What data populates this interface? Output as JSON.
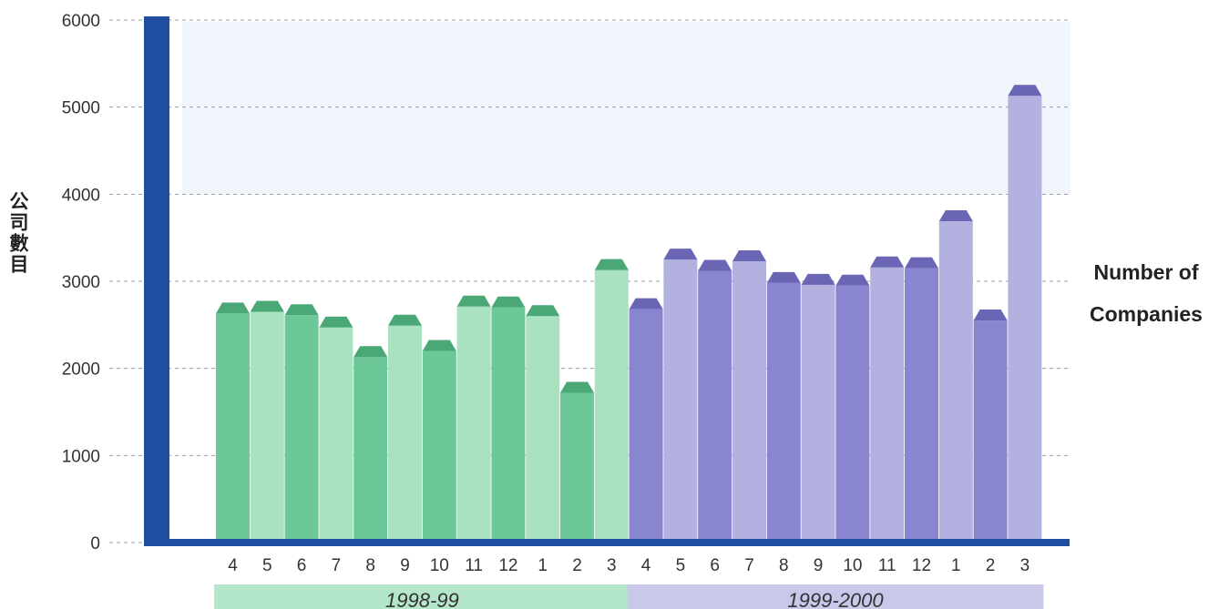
{
  "chart_data": {
    "type": "bar",
    "title": "",
    "ylabel_zh": "公司數目",
    "ylabel_en": "Number of Companies",
    "yticks": [
      0,
      1000,
      2000,
      3000,
      4000,
      5000,
      6000
    ],
    "ylim": [
      0,
      6000
    ],
    "grid": "dashed horizontal",
    "categories": [
      "4",
      "5",
      "6",
      "7",
      "8",
      "9",
      "10",
      "11",
      "12",
      "1",
      "2",
      "3",
      "4",
      "5",
      "6",
      "7",
      "8",
      "9",
      "10",
      "11",
      "12",
      "1",
      "2",
      "3"
    ],
    "values": [
      2630,
      2650,
      2610,
      2470,
      2130,
      2490,
      2200,
      2710,
      2700,
      2600,
      1720,
      3130,
      2680,
      3250,
      3120,
      3230,
      2980,
      2960,
      2950,
      3160,
      3150,
      3690,
      2550,
      5130
    ],
    "periods": [
      {
        "label": "1998-99",
        "start": 0,
        "end": 11
      },
      {
        "label": "1999-2000",
        "start": 12,
        "end": 23
      }
    ]
  },
  "colors": {
    "axis": "#1f4ea0",
    "green_dark": "#6cc896",
    "green_light": "#a8e2c0",
    "green_top": "#4aa876",
    "purple_dark": "#8a85cf",
    "purple_light": "#b3b1e0",
    "purple_top": "#6a65b5",
    "period_green": "#b4e6cc",
    "period_purple": "#c9c7ea",
    "backdrop": "#e6eefb"
  }
}
